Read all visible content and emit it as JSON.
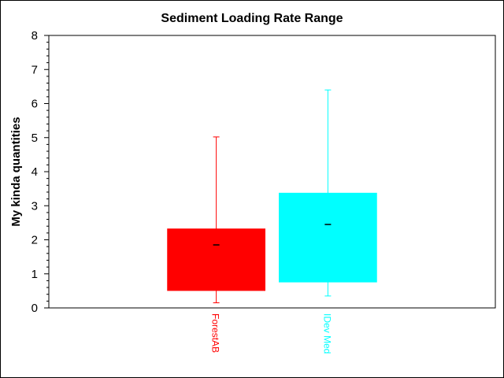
{
  "chart_data": {
    "type": "box",
    "title": "Sediment Loading Rate Range",
    "xlabel": "",
    "ylabel": "My kinda quantities",
    "ylim": [
      0,
      8
    ],
    "yticks": [
      "0",
      "1",
      "2",
      "3",
      "4",
      "5",
      "6",
      "7",
      "8"
    ],
    "grid": false,
    "boxes": [
      {
        "category": "ForestAB",
        "color": "#ff0000",
        "whisker_low": 0.15,
        "q1": 0.5,
        "median": 1.85,
        "q3": 2.33,
        "whisker_high": 5.02
      },
      {
        "category": "IDev Med",
        "color": "#00ffff",
        "whisker_low": 0.35,
        "q1": 0.75,
        "median": 2.45,
        "q3": 3.38,
        "whisker_high": 6.4
      }
    ]
  }
}
